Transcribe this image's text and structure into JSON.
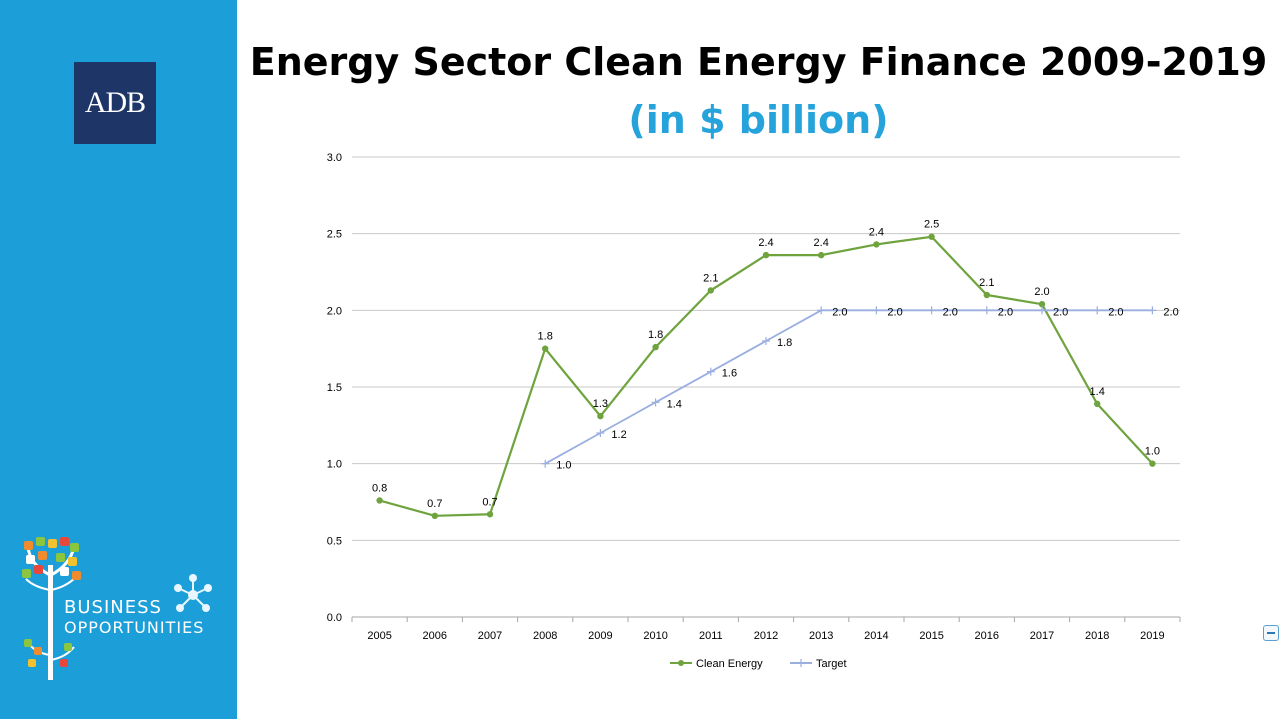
{
  "branding": {
    "logo_text": "ADB",
    "tagline_line1": "BUSINESS",
    "tagline_line2": "OPPORTUNITIES",
    "sidebar_color": "#1c9fd8",
    "logo_bg_color": "#1d3567"
  },
  "slide": {
    "title": "Energy Sector Clean Energy Finance 2009-2019",
    "subtitle": "(in $ billion)"
  },
  "chart_data": {
    "type": "line",
    "x": [
      "2005",
      "2006",
      "2007",
      "2008",
      "2009",
      "2010",
      "2011",
      "2012",
      "2013",
      "2014",
      "2015",
      "2016",
      "2017",
      "2018",
      "2019"
    ],
    "ylim": [
      0,
      3
    ],
    "yticks": [
      "0.0",
      "0.5",
      "1.0",
      "1.5",
      "2.0",
      "2.5",
      "3.0"
    ],
    "grid": true,
    "legend_position": "bottom",
    "series": [
      {
        "name": "Clean Energy",
        "color": "#6ea33e",
        "values": [
          0.76,
          0.66,
          0.67,
          1.75,
          1.31,
          1.76,
          2.13,
          2.36,
          2.36,
          2.43,
          2.48,
          2.1,
          2.04,
          1.39,
          1.0
        ],
        "labels": [
          "0.8",
          "0.7",
          "0.7",
          "1.8",
          "1.3",
          "1.8",
          "2.1",
          "2.4",
          "2.4",
          "2.4",
          "2.5",
          "2.1",
          "2.0",
          "1.4",
          "1.0"
        ]
      },
      {
        "name": "Target",
        "color": "#9aaee0",
        "values": [
          null,
          null,
          null,
          1.0,
          1.2,
          1.4,
          1.6,
          1.8,
          2.0,
          2.0,
          2.0,
          2.0,
          2.0,
          2.0,
          2.0
        ],
        "labels": [
          "",
          "",
          "",
          "1.0",
          "1.2",
          "1.4",
          "1.6",
          "1.8",
          "2.0",
          "2.0",
          "2.0",
          "2.0",
          "2.0",
          "2.0",
          "2.0"
        ]
      }
    ]
  }
}
